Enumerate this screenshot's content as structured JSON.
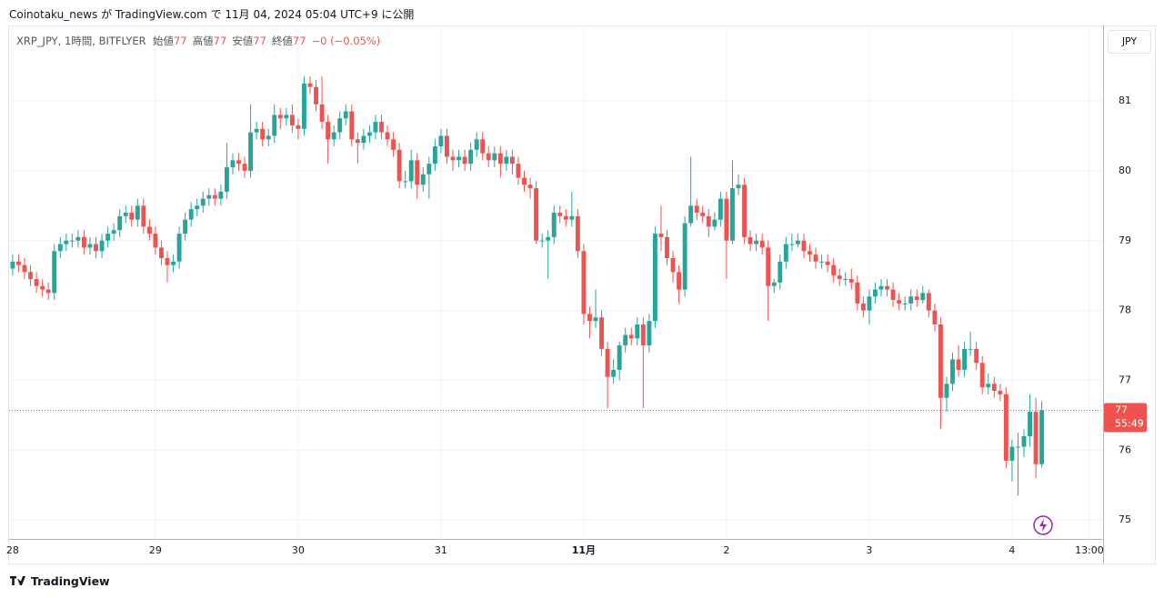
{
  "header": {
    "text": "Coinotaku_news が TradingView.com で 11月 04, 2024 05:04 UTC+9 に公開"
  },
  "brand": "TradingView",
  "chart_data": {
    "type": "candlestick",
    "symbol": "XRP_JPY, 1時間, BITFLYER",
    "legend": [
      {
        "label": "始値",
        "value": "77"
      },
      {
        "label": "高値",
        "value": "77"
      },
      {
        "label": "安値",
        "value": "77"
      },
      {
        "label": "終値",
        "value": "77"
      }
    ],
    "change": "−0 (−0.05%)",
    "currency": "JPY",
    "last_price_label": "77",
    "countdown": "55:49",
    "up_color": "#26a69a",
    "down_color": "#ef5350",
    "grid": true,
    "open": [
      78.6,
      78.7,
      78.65,
      78.55,
      78.45,
      78.35,
      78.3,
      78.25,
      78.85,
      78.95,
      79.0,
      79.0,
      79.05,
      78.9,
      78.95,
      78.85,
      79.0,
      79.1,
      79.15,
      79.35,
      79.4,
      79.3,
      79.5,
      79.2,
      79.1,
      78.9,
      78.75,
      78.65,
      78.7,
      79.1,
      79.3,
      79.45,
      79.5,
      79.6,
      79.65,
      79.6,
      79.7,
      80.05,
      80.15,
      80.1,
      80.0,
      80.55,
      80.6,
      80.45,
      80.5,
      80.8,
      80.75,
      80.8,
      80.65,
      80.6,
      81.25,
      81.2,
      80.95,
      80.7,
      80.45,
      80.55,
      80.75,
      80.85,
      80.45,
      80.4,
      80.5,
      80.55,
      80.7,
      80.55,
      80.45,
      80.3,
      79.85,
      79.85,
      80.15,
      79.8,
      79.95,
      80.1,
      80.35,
      80.5,
      80.2,
      80.15,
      80.2,
      80.1,
      80.3,
      80.45,
      80.25,
      80.15,
      80.25,
      80.1,
      80.2,
      80.1,
      79.9,
      79.8,
      79.75,
      79.0,
      79.0,
      79.05,
      79.4,
      79.35,
      79.3,
      79.35,
      78.85,
      77.95,
      77.85,
      77.9,
      77.45,
      77.05,
      77.15,
      77.5,
      77.65,
      77.6,
      77.8,
      77.5,
      77.85,
      79.1,
      79.05,
      78.75,
      78.55,
      78.3,
      79.25,
      79.5,
      79.4,
      79.35,
      79.2,
      79.3,
      79.6,
      79.0,
      79.75,
      79.8,
      79.05,
      78.95,
      79.0,
      78.9,
      78.35,
      78.4,
      78.7,
      78.95,
      78.95,
      79.0,
      78.85,
      78.8,
      78.7,
      78.7,
      78.65,
      78.5,
      78.45,
      78.45,
      78.4,
      78.1,
      78.0,
      78.2,
      78.3,
      78.35,
      78.3,
      78.15,
      78.1,
      78.1,
      78.2,
      78.15,
      78.25,
      78.0,
      77.8,
      76.75,
      76.95,
      77.3,
      77.15,
      77.45,
      77.45,
      77.25,
      76.9,
      76.95,
      76.85,
      76.8,
      75.85,
      76.05,
      76.05,
      76.2,
      76.55,
      75.8
    ],
    "high": [
      78.8,
      78.8,
      78.75,
      78.65,
      78.55,
      78.45,
      78.4,
      78.95,
      79.05,
      79.1,
      79.1,
      79.15,
      79.15,
      79.05,
      79.05,
      79.1,
      79.2,
      79.25,
      79.45,
      79.5,
      79.5,
      79.6,
      79.6,
      79.3,
      79.2,
      79.0,
      78.85,
      78.8,
      79.2,
      79.4,
      79.55,
      79.6,
      79.7,
      79.75,
      79.75,
      79.8,
      80.4,
      80.25,
      80.25,
      80.2,
      80.95,
      80.7,
      80.7,
      80.6,
      80.95,
      80.9,
      80.9,
      80.95,
      80.75,
      81.35,
      81.35,
      81.3,
      81.35,
      80.8,
      80.65,
      80.85,
      80.95,
      80.95,
      80.55,
      80.6,
      80.65,
      80.8,
      80.8,
      80.65,
      80.55,
      80.4,
      80.0,
      80.3,
      80.25,
      80.05,
      80.2,
      80.45,
      80.6,
      80.6,
      80.3,
      80.3,
      80.3,
      80.4,
      80.55,
      80.55,
      80.35,
      80.35,
      80.35,
      80.3,
      80.3,
      80.2,
      80.0,
      79.9,
      79.85,
      79.1,
      79.15,
      79.5,
      79.5,
      79.45,
      79.7,
      79.45,
      78.95,
      78.05,
      78.3,
      78.0,
      77.55,
      77.3,
      77.55,
      77.75,
      77.75,
      77.9,
      77.9,
      77.95,
      79.2,
      79.5,
      79.15,
      78.85,
      78.65,
      79.35,
      80.2,
      79.6,
      79.5,
      79.45,
      79.4,
      79.7,
      79.7,
      80.15,
      79.95,
      79.9,
      79.15,
      79.1,
      79.1,
      79.0,
      78.45,
      78.8,
      79.05,
      79.1,
      79.1,
      79.1,
      78.95,
      78.9,
      78.8,
      78.8,
      78.75,
      78.6,
      78.55,
      78.6,
      78.5,
      78.2,
      78.3,
      78.4,
      78.45,
      78.45,
      78.4,
      78.25,
      78.2,
      78.3,
      78.3,
      78.35,
      78.3,
      78.1,
      77.9,
      77.05,
      77.4,
      77.5,
      77.55,
      77.7,
      77.55,
      77.35,
      77.1,
      77.05,
      76.95,
      76.9,
      76.15,
      76.25,
      76.3,
      76.8,
      76.75,
      76.7
    ],
    "low": [
      78.5,
      78.55,
      78.45,
      78.35,
      78.25,
      78.2,
      78.15,
      78.15,
      78.75,
      78.85,
      78.9,
      78.9,
      78.8,
      78.8,
      78.75,
      78.75,
      78.9,
      79.0,
      79.05,
      79.25,
      79.2,
      79.2,
      79.1,
      79.0,
      78.8,
      78.65,
      78.4,
      78.55,
      78.6,
      79.0,
      79.2,
      79.35,
      79.4,
      79.5,
      79.5,
      79.5,
      79.6,
      79.95,
      80.0,
      79.9,
      79.9,
      80.45,
      80.35,
      80.35,
      80.4,
      80.6,
      80.65,
      80.55,
      80.45,
      80.5,
      81.1,
      80.85,
      80.6,
      80.1,
      80.35,
      80.45,
      80.65,
      80.35,
      80.1,
      80.3,
      80.4,
      80.45,
      80.45,
      80.35,
      80.2,
      79.75,
      79.75,
      79.75,
      79.6,
      79.7,
      79.6,
      80.0,
      80.25,
      80.1,
      80.0,
      80.05,
      80.0,
      80.0,
      80.2,
      80.15,
      80.05,
      80.05,
      79.9,
      80.0,
      79.95,
      79.8,
      79.7,
      79.6,
      78.95,
      78.9,
      78.45,
      78.95,
      79.25,
      79.2,
      79.2,
      78.75,
      77.8,
      77.6,
      77.75,
      77.35,
      76.6,
      76.95,
      77.0,
      77.4,
      77.5,
      77.5,
      76.6,
      77.4,
      77.75,
      78.85,
      78.65,
      78.4,
      78.1,
      78.2,
      79.2,
      79.3,
      79.25,
      79.05,
      79.15,
      79.2,
      78.45,
      78.95,
      79.65,
      78.95,
      78.85,
      78.85,
      78.8,
      77.85,
      78.25,
      78.3,
      78.6,
      78.85,
      78.9,
      78.75,
      78.7,
      78.6,
      78.6,
      78.55,
      78.4,
      78.35,
      78.35,
      78.3,
      78.0,
      77.9,
      77.8,
      78.1,
      78.2,
      78.2,
      78.05,
      78.0,
      78.0,
      78.0,
      78.05,
      78.1,
      77.9,
      77.7,
      76.3,
      76.55,
      76.85,
      77.05,
      77.05,
      77.35,
      77.15,
      76.8,
      76.8,
      76.75,
      76.7,
      75.75,
      75.55,
      75.35,
      75.9,
      76.05,
      75.6,
      75.75
    ],
    "close": [
      78.7,
      78.65,
      78.55,
      78.45,
      78.35,
      78.3,
      78.25,
      78.85,
      78.95,
      79.0,
      79.0,
      79.05,
      78.9,
      78.95,
      78.85,
      79.0,
      79.1,
      79.15,
      79.35,
      79.4,
      79.3,
      79.5,
      79.2,
      79.1,
      78.9,
      78.75,
      78.65,
      78.7,
      79.1,
      79.3,
      79.45,
      79.5,
      79.6,
      79.65,
      79.6,
      79.7,
      80.05,
      80.15,
      80.1,
      80.0,
      80.55,
      80.6,
      80.45,
      80.5,
      80.8,
      80.75,
      80.8,
      80.65,
      80.6,
      81.25,
      81.2,
      80.95,
      80.7,
      80.45,
      80.55,
      80.75,
      80.85,
      80.45,
      80.4,
      80.5,
      80.55,
      80.7,
      80.55,
      80.45,
      80.3,
      79.85,
      79.85,
      80.15,
      79.8,
      79.95,
      80.1,
      80.35,
      80.5,
      80.2,
      80.15,
      80.2,
      80.1,
      80.3,
      80.45,
      80.25,
      80.15,
      80.25,
      80.1,
      80.2,
      80.1,
      79.9,
      79.8,
      79.75,
      79.0,
      79.0,
      79.05,
      79.4,
      79.35,
      79.3,
      79.35,
      78.85,
      77.95,
      77.85,
      77.9,
      77.45,
      77.05,
      77.15,
      77.5,
      77.65,
      77.6,
      77.8,
      77.5,
      77.85,
      79.1,
      79.05,
      78.75,
      78.55,
      78.3,
      79.25,
      79.5,
      79.4,
      79.35,
      79.2,
      79.3,
      79.6,
      79.0,
      79.75,
      79.8,
      79.05,
      78.95,
      79.0,
      78.9,
      78.35,
      78.4,
      78.7,
      78.95,
      78.95,
      79.0,
      78.85,
      78.8,
      78.7,
      78.7,
      78.65,
      78.5,
      78.45,
      78.45,
      78.4,
      78.1,
      78.0,
      78.2,
      78.3,
      78.35,
      78.3,
      78.15,
      78.1,
      78.1,
      78.2,
      78.15,
      78.25,
      78.0,
      77.8,
      76.75,
      76.95,
      77.3,
      77.15,
      77.45,
      77.45,
      77.25,
      76.9,
      76.95,
      76.85,
      76.8,
      75.85,
      76.05,
      76.05,
      76.2,
      76.55,
      75.8,
      76.57
    ],
    "xlim": [
      -0.6,
      183.3
    ],
    "xticks": [
      {
        "value": 0,
        "label": "28"
      },
      {
        "value": 24,
        "label": "29"
      },
      {
        "value": 48,
        "label": "30"
      },
      {
        "value": 72,
        "label": "31"
      },
      {
        "value": 96,
        "label": "11月"
      },
      {
        "value": 120,
        "label": "2"
      },
      {
        "value": 144,
        "label": "3"
      },
      {
        "value": 168,
        "label": "4"
      },
      {
        "value": 181,
        "label": "13:00"
      }
    ],
    "ylim": [
      74.73,
      82.08
    ],
    "yticks": [
      75,
      76,
      77,
      78,
      79,
      80,
      81
    ]
  }
}
